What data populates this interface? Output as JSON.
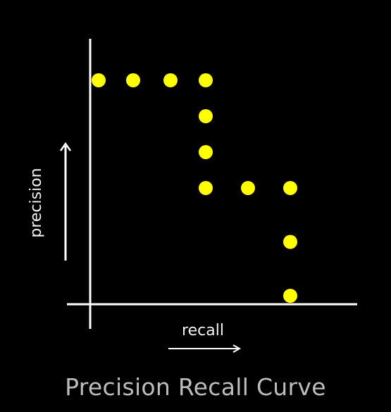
{
  "chart_data": {
    "type": "scatter",
    "title": "Precision Recall Curve",
    "xlabel": "recall",
    "ylabel": "precision",
    "colors": {
      "background": "#000000",
      "axis": "#ffffff",
      "points": "#ffff00",
      "title": "#bdbdbd"
    },
    "series": [
      {
        "points": [
          {
            "x": 1,
            "y": 7
          },
          {
            "x": 2,
            "y": 7
          },
          {
            "x": 3,
            "y": 7
          },
          {
            "x": 4,
            "y": 7
          },
          {
            "x": 4,
            "y": 6
          },
          {
            "x": 4,
            "y": 5
          },
          {
            "x": 4,
            "y": 4
          },
          {
            "x": 5,
            "y": 4
          },
          {
            "x": 6,
            "y": 4
          },
          {
            "x": 6,
            "y": 2.5
          },
          {
            "x": 6,
            "y": 1
          }
        ]
      }
    ]
  }
}
